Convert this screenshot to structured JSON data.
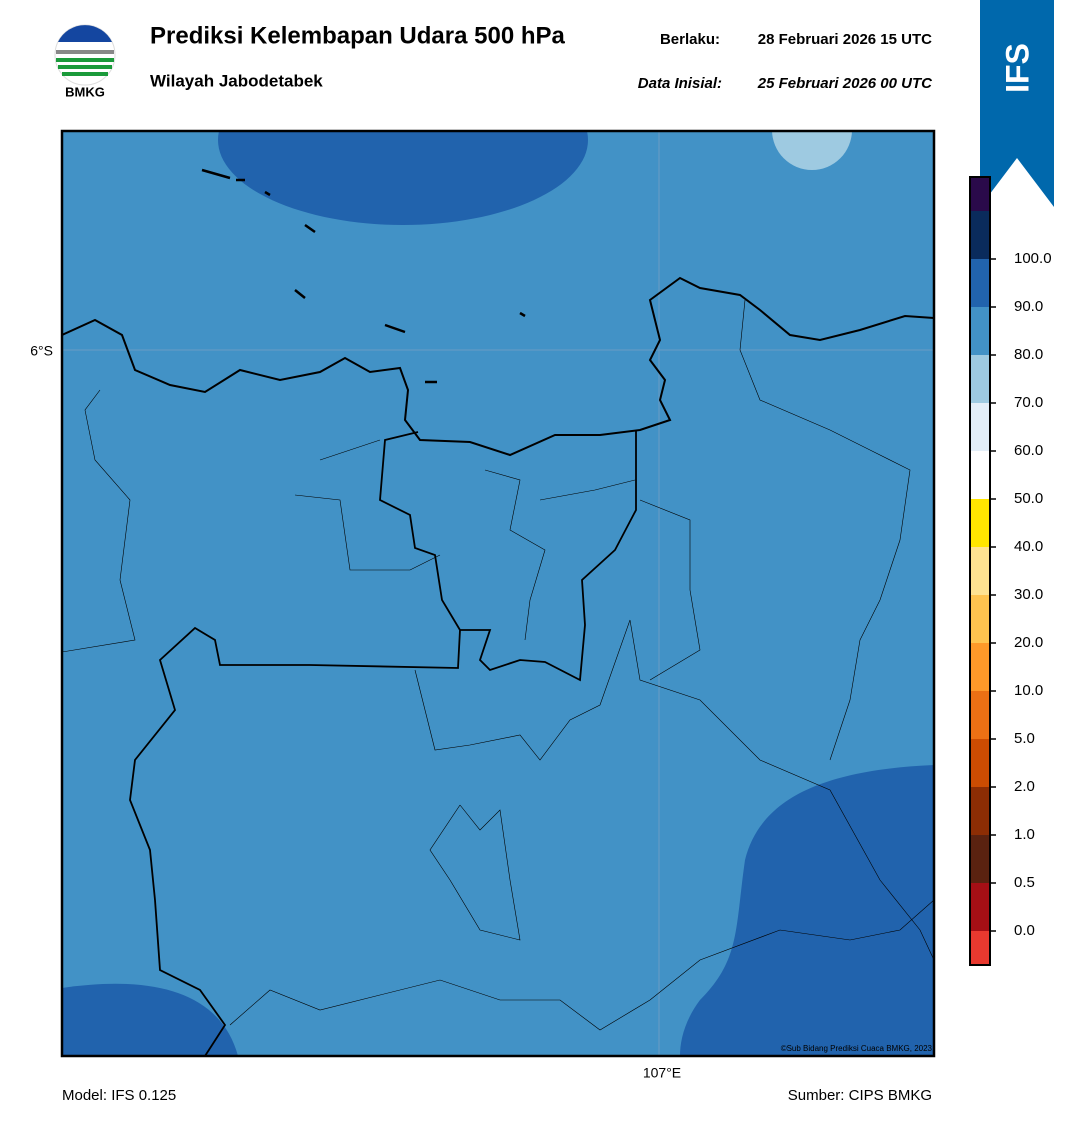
{
  "header": {
    "title": "Prediksi Kelembapan Udara 500 hPa",
    "subtitle": "Wilayah Jabodetabek",
    "valid_label": "Berlaku:",
    "valid_time": "28 Februari 2026 15 UTC",
    "init_label": "Data Inisial:",
    "init_time": "25 Februari 2026 00 UTC",
    "logo_text": "BMKG",
    "model_badge": "IFS"
  },
  "map": {
    "lat_label": "6°S",
    "lon_label": "107°E",
    "copyright": "©Sub Bidang Prediksi Cuaca BMKG, 2023"
  },
  "colorbar": {
    "labels": [
      "0.0",
      "0.5",
      "1.0",
      "2.0",
      "5.0",
      "10.0",
      "20.0",
      "30.0",
      "40.0",
      "50.0",
      "60.0",
      "70.0",
      "80.0",
      "90.0",
      "100.0"
    ],
    "colors": [
      "#e8392f",
      "#a50f15",
      "#5a2210",
      "#8c2d04",
      "#cc4c02",
      "#ec7014",
      "#fe9929",
      "#fec44f",
      "#fee391",
      "#ffe600",
      "#ffffff",
      "#e3eef8",
      "#9ecae1",
      "#4292c6",
      "#2163ad",
      "#0a2b5c",
      "#2a0a4a"
    ]
  },
  "footer": {
    "model": "Model: IFS 0.125",
    "source": "Sumber: CIPS BMKG"
  }
}
